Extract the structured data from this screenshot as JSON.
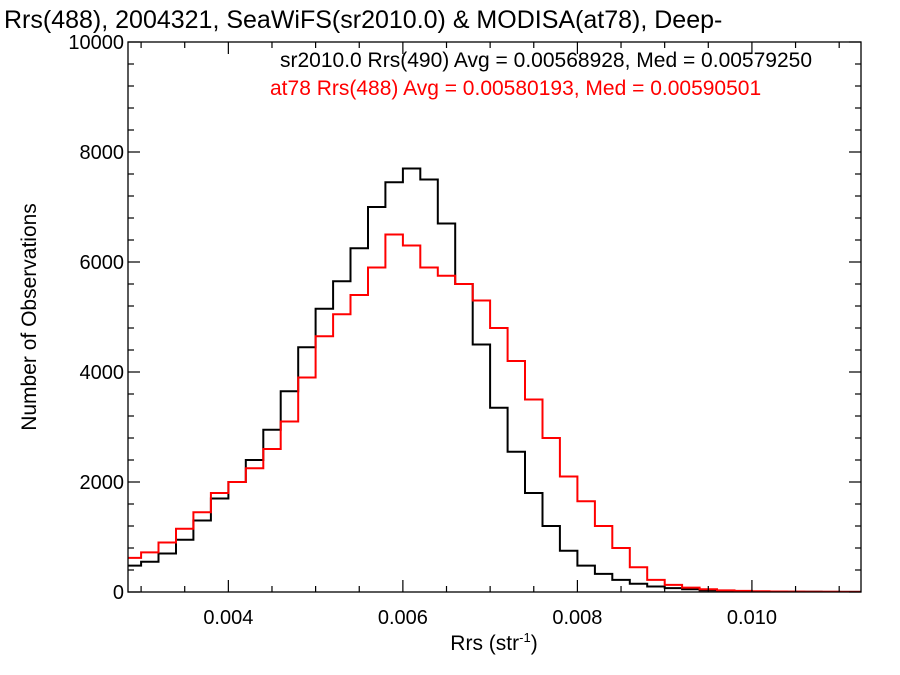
{
  "chart_data": {
    "type": "line",
    "title": "Rrs(488), 2004321, SeaWiFS(sr2010.0) & MODISA(at78), Deep-",
    "xlabel": "Rrs (str",
    "xlabel_sup": "-1",
    "xlabel_close": ")",
    "ylabel": "Number of Observations",
    "xlim": [
      0.00285,
      0.01125
    ],
    "ylim": [
      0,
      10000
    ],
    "x_ticks": [
      0.004,
      0.006,
      0.008,
      0.01
    ],
    "x_tick_labels": [
      "0.004",
      "0.006",
      "0.008",
      "0.010"
    ],
    "y_ticks": [
      0,
      2000,
      4000,
      6000,
      8000,
      10000
    ],
    "y_tick_labels": [
      "0",
      "2000",
      "4000",
      "6000",
      "8000",
      "10000"
    ],
    "grid": false,
    "legend_position": "top-right",
    "series": [
      {
        "name": "sr2010.0 Rrs(490) Avg = 0.00568928, Med = 0.00579250",
        "color": "#000000",
        "x": [
          0.00285,
          0.003,
          0.0032,
          0.0034,
          0.0036,
          0.0038,
          0.004,
          0.0042,
          0.0044,
          0.0046,
          0.0048,
          0.005,
          0.0052,
          0.0054,
          0.0056,
          0.0058,
          0.006,
          0.0062,
          0.0064,
          0.0066,
          0.0068,
          0.007,
          0.0072,
          0.0074,
          0.0076,
          0.0078,
          0.008,
          0.0082,
          0.0084,
          0.0086,
          0.0088,
          0.009,
          0.0092,
          0.0094,
          0.0096,
          0.0098,
          0.01,
          0.0102,
          0.0104,
          0.0106,
          0.0108,
          0.011,
          0.01125
        ],
        "y": [
          480,
          550,
          700,
          950,
          1300,
          1700,
          2000,
          2400,
          2950,
          3650,
          4450,
          5150,
          5650,
          6250,
          7000,
          7450,
          7700,
          7500,
          6700,
          5600,
          4500,
          3350,
          2550,
          1800,
          1200,
          750,
          480,
          330,
          220,
          150,
          100,
          70,
          50,
          30,
          20,
          15,
          10,
          8,
          5,
          3,
          2,
          1,
          0
        ]
      },
      {
        "name": "at78 Rrs(488) Avg = 0.00580193, Med = 0.00590501",
        "color": "#ff0000",
        "x": [
          0.00285,
          0.003,
          0.0032,
          0.0034,
          0.0036,
          0.0038,
          0.004,
          0.0042,
          0.0044,
          0.0046,
          0.0048,
          0.005,
          0.0052,
          0.0054,
          0.0056,
          0.0058,
          0.006,
          0.0062,
          0.0064,
          0.0066,
          0.0068,
          0.007,
          0.0072,
          0.0074,
          0.0076,
          0.0078,
          0.008,
          0.0082,
          0.0084,
          0.0086,
          0.0088,
          0.009,
          0.0092,
          0.0094,
          0.0096,
          0.0098,
          0.01,
          0.0102,
          0.0104,
          0.0106,
          0.0108,
          0.011,
          0.01125
        ],
        "y": [
          620,
          720,
          900,
          1150,
          1450,
          1800,
          2000,
          2250,
          2600,
          3100,
          3900,
          4650,
          5050,
          5400,
          5900,
          6500,
          6300,
          5900,
          5750,
          5600,
          5300,
          4800,
          4200,
          3500,
          2800,
          2100,
          1650,
          1200,
          800,
          450,
          220,
          130,
          80,
          50,
          30,
          20,
          15,
          10,
          8,
          5,
          3,
          1,
          0
        ]
      }
    ]
  }
}
